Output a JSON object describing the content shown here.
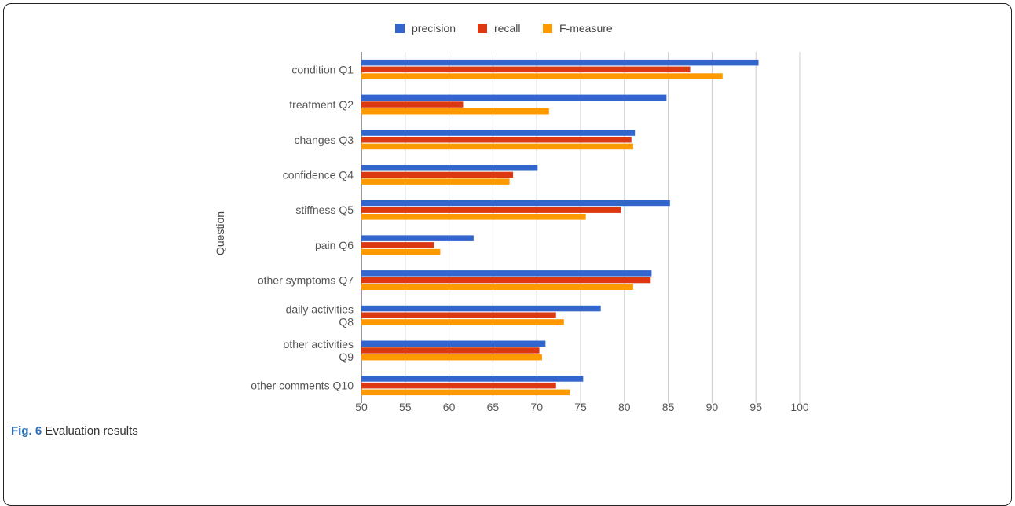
{
  "figure": {
    "caption_label": "Fig. 6",
    "caption_text": "Evaluation results"
  },
  "chart_data": {
    "type": "bar",
    "orientation": "horizontal",
    "ylabel": "Question",
    "xlabel": "",
    "xlim": [
      50,
      100
    ],
    "xticks": [
      50,
      55,
      60,
      65,
      70,
      75,
      80,
      85,
      90,
      95,
      100
    ],
    "grid": true,
    "legend_position": "top",
    "categories": [
      "condition Q1",
      "treatment Q2",
      "changes Q3",
      "confidence Q4",
      "stiffness Q5",
      "pain Q6",
      "other symptoms Q7",
      "daily activities Q8",
      "other activities Q9",
      "other comments Q10"
    ],
    "series": [
      {
        "name": "precision",
        "color": "#3366cc",
        "values": [
          95.3,
          84.8,
          81.2,
          70.1,
          85.2,
          62.8,
          83.1,
          77.3,
          71.0,
          75.3
        ]
      },
      {
        "name": "recall",
        "color": "#dc3912",
        "values": [
          87.5,
          61.6,
          80.8,
          67.3,
          79.6,
          58.3,
          83.0,
          72.2,
          70.3,
          72.2
        ]
      },
      {
        "name": "F-measure",
        "color": "#ff9900",
        "values": [
          91.2,
          71.4,
          81.0,
          66.9,
          75.6,
          59.0,
          81.0,
          73.1,
          70.6,
          73.8
        ]
      }
    ]
  }
}
